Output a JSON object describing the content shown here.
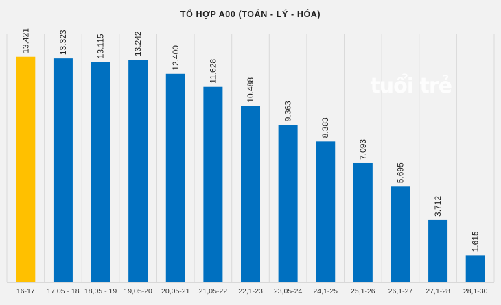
{
  "chart_data": {
    "type": "bar",
    "title": "TỔ HỢP A00 (TOÁN - LÝ - HÓA)",
    "categories": [
      "16-17",
      "17,05 - 18",
      "18,05 - 19",
      "19,05-20",
      "20,05-21",
      "21,05-22",
      "22,1-23",
      "23,05-24",
      "24,1-25",
      "25,1-26",
      "26,1-27",
      "27,1-28",
      "28,1-30"
    ],
    "values": [
      13421,
      13323,
      13115,
      13242,
      12400,
      11628,
      10488,
      9363,
      8383,
      7093,
      5695,
      3712,
      1615
    ],
    "value_labels": [
      "13.421",
      "13.323",
      "13.115",
      "13.242",
      "12.400",
      "11.628",
      "10.488",
      "9.363",
      "8.383",
      "7.093",
      "5.695",
      "3.712",
      "1.615"
    ],
    "highlight_index": 0,
    "colors": {
      "bar": "#0070c0",
      "highlight": "#ffc000"
    },
    "ylim": [
      0,
      15000
    ],
    "grid": true,
    "xlabel": "",
    "ylabel": ""
  },
  "watermark": "tuổi trẻ"
}
